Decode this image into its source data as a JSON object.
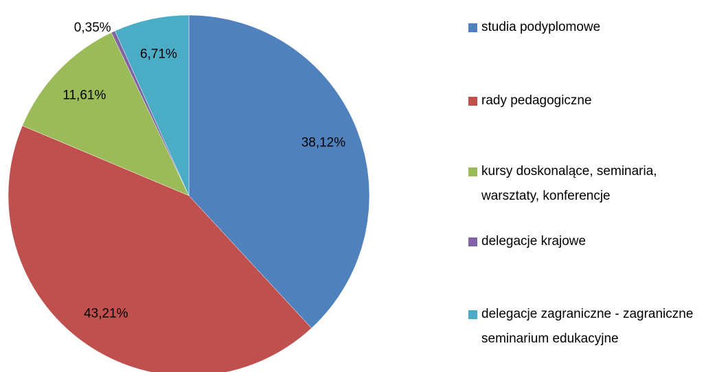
{
  "chart_data": {
    "type": "pie",
    "categories": [
      "studia podyplomowe",
      "rady pedagogiczne",
      "kursy doskonalące, seminaria, warsztaty, konferencje",
      "delegacje krajowe",
      "delegacje zagraniczne - zagraniczne seminarium edukacyjne"
    ],
    "values": [
      38.12,
      43.21,
      11.61,
      0.35,
      6.71
    ],
    "value_labels": [
      "38,12%",
      "43,21%",
      "11,61%",
      "0,35%",
      "6,71%"
    ],
    "colors": [
      "#4f81bd",
      "#c0504d",
      "#9bbb59",
      "#8064a2",
      "#4bacc6"
    ],
    "legend": "right"
  }
}
